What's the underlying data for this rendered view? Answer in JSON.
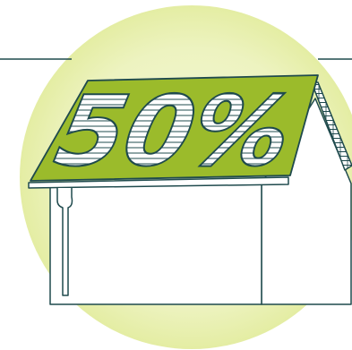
{
  "illustration": {
    "roof_text": "50%"
  },
  "colors": {
    "outline": "#1f4a4d",
    "roof_green": "#9bbb2b",
    "glow_center": "#f2f6cf",
    "glow_edge": "#e9f1b3",
    "background": "#ffffff"
  },
  "icons": [
    "house-icon",
    "solar-panel-icon",
    "percent-icon"
  ]
}
